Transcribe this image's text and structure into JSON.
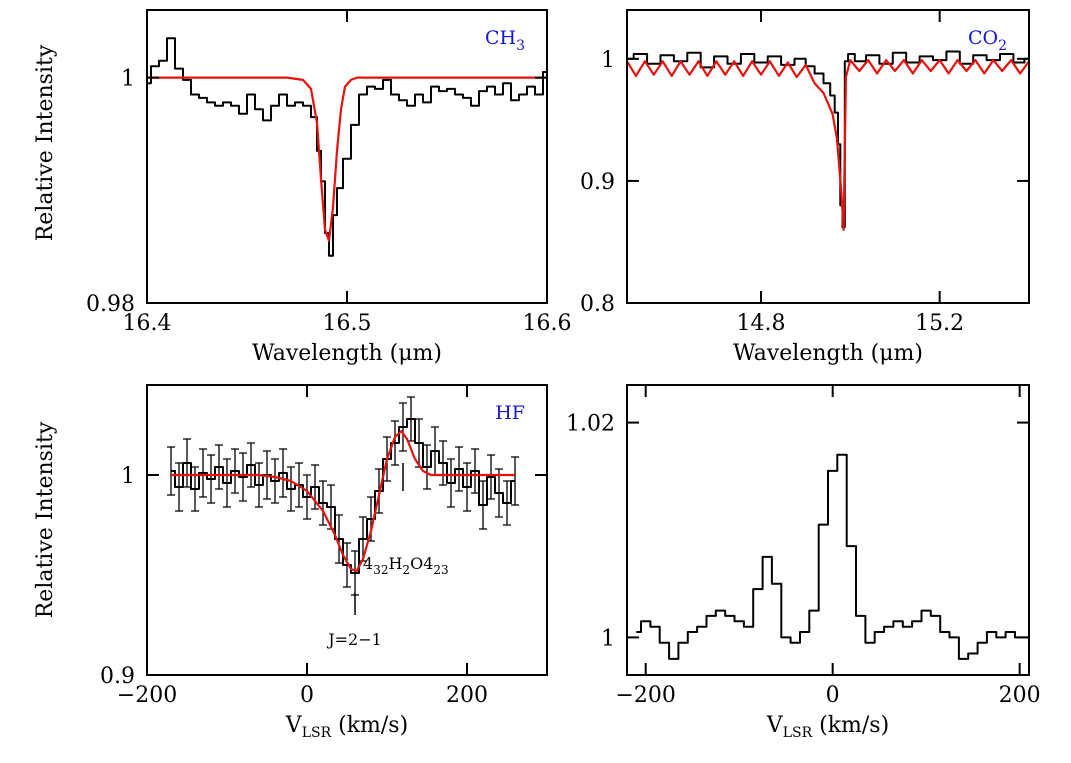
{
  "colors": {
    "data": "#000000",
    "model": "#e8100c",
    "label": "#1515dd"
  },
  "chart_data": [
    {
      "id": "ch3",
      "type": "line",
      "title": "CH3",
      "title_main": "CH",
      "title_sub": "3",
      "xlabel": "Wavelength (μm)",
      "ylabel": "Relative Intensity",
      "xlim": [
        16.4,
        16.6
      ],
      "ylim": [
        0.98,
        1.006
      ],
      "xticks": [
        16.4,
        16.5,
        16.6
      ],
      "xtick_labels": [
        "16.4",
        "16.5",
        "16.6"
      ],
      "yticks": [
        0.98,
        1
      ],
      "ytick_labels": [
        "0.98",
        "1"
      ],
      "series": [
        {
          "name": "observed",
          "style": "step",
          "color": "black",
          "x": [
            16.4,
            16.404,
            16.408,
            16.412,
            16.416,
            16.42,
            16.424,
            16.428,
            16.432,
            16.436,
            16.44,
            16.444,
            16.448,
            16.452,
            16.456,
            16.46,
            16.464,
            16.468,
            16.472,
            16.476,
            16.48,
            16.484,
            16.486,
            16.488,
            16.49,
            16.492,
            16.494,
            16.496,
            16.5,
            16.504,
            16.508,
            16.512,
            16.516,
            16.52,
            16.524,
            16.528,
            16.532,
            16.536,
            16.54,
            16.544,
            16.548,
            16.552,
            16.556,
            16.56,
            16.564,
            16.568,
            16.572,
            16.576,
            16.58,
            16.584,
            16.588,
            16.592,
            16.596,
            16.6
          ],
          "y": [
            0.9995,
            1.001,
            1.0015,
            1.0035,
            1.0008,
            0.9998,
            0.9985,
            0.9982,
            0.9978,
            0.9975,
            0.9978,
            0.9975,
            0.9968,
            0.9985,
            0.9972,
            0.9962,
            0.9975,
            0.9985,
            0.9975,
            0.9978,
            0.9975,
            0.9965,
            0.9935,
            0.9908,
            0.9862,
            0.9842,
            0.9878,
            0.9902,
            0.9928,
            0.9958,
            0.9985,
            0.9992,
            0.999,
            0.9998,
            0.9985,
            0.998,
            0.9975,
            0.9985,
            0.9978,
            0.9992,
            0.9988,
            0.999,
            0.9985,
            0.9982,
            0.9975,
            0.9988,
            0.9992,
            0.9985,
            0.9995,
            0.998,
            0.9985,
            0.9992,
            0.9985,
            1.0005
          ]
        },
        {
          "name": "model",
          "style": "line",
          "color": "red",
          "x": [
            16.4,
            16.47,
            16.478,
            16.482,
            16.485,
            16.487,
            16.489,
            16.491,
            16.493,
            16.495,
            16.497,
            16.499,
            16.502,
            16.505,
            16.51,
            16.6
          ],
          "y": [
            1,
            1,
            0.9998,
            0.999,
            0.996,
            0.991,
            0.9865,
            0.9855,
            0.9885,
            0.9935,
            0.9972,
            0.9992,
            0.9998,
            1,
            1,
            1
          ]
        }
      ],
      "annotations": []
    },
    {
      "id": "co2",
      "type": "line",
      "title": "CO2",
      "title_main": "CO",
      "title_sub": "2",
      "xlabel": "Wavelength (μm)",
      "ylabel": "",
      "xlim": [
        14.5,
        15.4
      ],
      "ylim": [
        0.8,
        1.04
      ],
      "xticks": [
        14.8,
        15.2
      ],
      "xtick_labels": [
        "14.8",
        "15.2"
      ],
      "yticks": [
        0.8,
        0.9,
        1
      ],
      "ytick_labels": [
        "0.8",
        "0.9",
        "1"
      ],
      "series": [
        {
          "name": "observed",
          "style": "step",
          "color": "black",
          "x": [
            14.5,
            14.53,
            14.56,
            14.59,
            14.62,
            14.65,
            14.68,
            14.71,
            14.74,
            14.77,
            14.8,
            14.83,
            14.86,
            14.89,
            14.91,
            14.93,
            14.95,
            14.96,
            14.97,
            14.975,
            14.98,
            14.985,
            14.99,
            15.0,
            15.02,
            15.05,
            15.08,
            15.11,
            15.14,
            15.17,
            15.2,
            15.23,
            15.26,
            15.29,
            15.32,
            15.35,
            15.38,
            15.4
          ],
          "y": [
            1.0,
            1.004,
            0.996,
            1.003,
            0.998,
            1.005,
            0.993,
            1.002,
            0.996,
            1.004,
            0.997,
            1.002,
            0.995,
            1.0,
            0.994,
            0.988,
            0.98,
            0.97,
            0.956,
            0.93,
            0.88,
            0.862,
            0.998,
            1.004,
            0.998,
            1.003,
            0.996,
            1.005,
            0.997,
            1.002,
            0.999,
            1.006,
            0.996,
            1.003,
            0.999,
            1.004,
            0.997,
            1.0
          ]
        },
        {
          "name": "model",
          "style": "line",
          "color": "red",
          "x": [
            14.5,
            14.52,
            14.54,
            14.56,
            14.58,
            14.6,
            14.62,
            14.64,
            14.66,
            14.68,
            14.7,
            14.72,
            14.74,
            14.76,
            14.78,
            14.8,
            14.82,
            14.84,
            14.86,
            14.88,
            14.9,
            14.92,
            14.94,
            14.96,
            14.97,
            14.98,
            14.985,
            14.99,
            15.0,
            15.02,
            15.04,
            15.06,
            15.08,
            15.1,
            15.12,
            15.14,
            15.16,
            15.18,
            15.2,
            15.22,
            15.24,
            15.26,
            15.28,
            15.3,
            15.32,
            15.34,
            15.36,
            15.38,
            15.4
          ],
          "y": [
            0.998,
            0.986,
            0.998,
            0.987,
            0.998,
            0.986,
            0.998,
            0.987,
            0.998,
            0.986,
            0.998,
            0.987,
            0.998,
            0.986,
            0.998,
            0.987,
            0.998,
            0.986,
            0.997,
            0.985,
            0.995,
            0.98,
            0.972,
            0.955,
            0.935,
            0.89,
            0.86,
            0.985,
            0.999,
            0.99,
            0.999,
            0.988,
            0.999,
            0.99,
            0.999,
            0.988,
            0.999,
            0.99,
            0.999,
            0.988,
            0.999,
            0.99,
            0.999,
            0.988,
            0.999,
            0.99,
            0.999,
            0.988,
            0.998
          ]
        }
      ],
      "annotations": []
    },
    {
      "id": "hf",
      "type": "line",
      "title": "HF",
      "xlabel_main": "V",
      "xlabel_sub": "LSR",
      "xlabel_rest": " (km/s)",
      "ylabel": "Relative Intensity",
      "xlim": [
        -200,
        300
      ],
      "ylim": [
        0.9,
        1.045
      ],
      "xticks": [
        -200,
        0,
        200
      ],
      "xtick_labels": [
        "−200",
        "0",
        "200"
      ],
      "yticks": [
        0.9,
        1
      ],
      "ytick_labels": [
        "0.9",
        "1"
      ],
      "series": [
        {
          "name": "observed",
          "style": "step",
          "color": "black",
          "x": [
            -170,
            -160,
            -150,
            -140,
            -130,
            -120,
            -110,
            -100,
            -90,
            -80,
            -70,
            -60,
            -50,
            -40,
            -30,
            -20,
            -10,
            0,
            10,
            20,
            30,
            40,
            50,
            60,
            70,
            80,
            90,
            100,
            110,
            120,
            130,
            140,
            150,
            160,
            170,
            180,
            190,
            200,
            210,
            220,
            230,
            240,
            250,
            260
          ],
          "y": [
            1.002,
            0.994,
            1.006,
            0.993,
            1.001,
            0.998,
            1.004,
            0.996,
            1.002,
            0.999,
            1.005,
            0.995,
            1.0,
            0.997,
            1.001,
            0.993,
            0.995,
            0.989,
            0.994,
            0.986,
            0.984,
            0.968,
            0.955,
            0.951,
            0.968,
            0.978,
            0.992,
            1.008,
            1.016,
            1.024,
            1.028,
            1.016,
            1.004,
            1.012,
            1.006,
            0.996,
            1.003,
            0.994,
            1.002,
            0.985,
            0.999,
            0.991,
            0.986,
            0.997
          ],
          "err": [
            0.012,
            0.012,
            0.012,
            0.011,
            0.012,
            0.012,
            0.011,
            0.012,
            0.011,
            0.012,
            0.011,
            0.011,
            0.012,
            0.011,
            0.012,
            0.011,
            0.011,
            0.011,
            0.011,
            0.011,
            0.011,
            0.012,
            0.011,
            0.011,
            0.011,
            0.011,
            0.011,
            0.011,
            0.011,
            0.012,
            0.011,
            0.012,
            0.011,
            0.012,
            0.011,
            0.012,
            0.011,
            0.012,
            0.011,
            0.012,
            0.011,
            0.012,
            0.011,
            0.012
          ]
        },
        {
          "name": "model",
          "style": "line",
          "color": "red",
          "x": [
            -170,
            -60,
            -40,
            -20,
            0,
            20,
            35,
            45,
            55,
            62,
            70,
            80,
            90,
            100,
            110,
            118,
            125,
            135,
            145,
            155,
            170,
            190,
            220,
            260
          ],
          "y": [
            1,
            1,
            0.999,
            0.997,
            0.992,
            0.982,
            0.97,
            0.96,
            0.953,
            0.952,
            0.958,
            0.972,
            0.99,
            1.008,
            1.019,
            1.022,
            1.018,
            1.008,
            1.002,
            1.0,
            1.0,
            1.0,
            1.0,
            1.0
          ]
        }
      ],
      "annotations": [
        {
          "text": "J=2−1",
          "x": 65,
          "y": 0.925
        },
        {
          "label_pre": "4",
          "label_pre_sub": "32",
          "label_mid": "H",
          "label_mid_sub": "2",
          "label_post": "O",
          "label_end": "4",
          "label_end_sub": "23",
          "x": 120,
          "y": 0.963
        }
      ]
    },
    {
      "id": "residual",
      "type": "line",
      "title": "",
      "xlabel_main": "V",
      "xlabel_sub": "LSR",
      "xlabel_rest": " (km/s)",
      "ylabel": "",
      "xlim": [
        -220,
        210
      ],
      "ylim": [
        0.9965,
        1.0235
      ],
      "xticks": [
        -200,
        0,
        200
      ],
      "xtick_labels": [
        "−200",
        "0",
        "200"
      ],
      "yticks": [
        1,
        1.02
      ],
      "ytick_labels": [
        "1",
        "1.02"
      ],
      "series": [
        {
          "name": "spectrum",
          "style": "step",
          "color": "black",
          "x": [
            -210,
            -200,
            -190,
            -180,
            -170,
            -160,
            -150,
            -140,
            -130,
            -120,
            -110,
            -100,
            -90,
            -80,
            -70,
            -60,
            -50,
            -40,
            -30,
            -20,
            -10,
            0,
            10,
            20,
            30,
            40,
            50,
            60,
            70,
            80,
            90,
            100,
            110,
            120,
            130,
            140,
            150,
            160,
            170,
            180,
            190,
            200,
            210
          ],
          "y": [
            1.0005,
            1.0015,
            1.001,
            0.9995,
            0.998,
            0.9995,
            1.0005,
            1.001,
            1.002,
            1.0025,
            1.002,
            1.0015,
            1.001,
            1.0045,
            1.0075,
            1.005,
            1.0,
            0.9995,
            1.0005,
            1.0025,
            1.0105,
            1.0155,
            1.017,
            1.0085,
            1.002,
            0.9995,
            1.0005,
            1.001,
            1.0015,
            1.001,
            1.0015,
            1.0025,
            1.002,
            1.0005,
            1.0,
            0.998,
            0.9985,
            0.9995,
            1.0005,
            1.0,
            1.0005,
            1.0,
            1.0
          ]
        }
      ],
      "annotations": []
    }
  ]
}
